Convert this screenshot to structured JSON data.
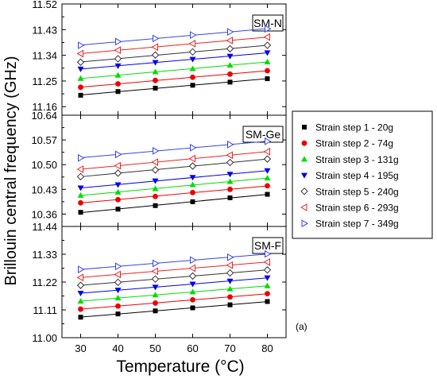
{
  "figure": {
    "ylabel": "Brillouin central frequency (GHz)",
    "xlabel": "Temperature (°C)",
    "panel_tag": "(a)"
  },
  "chart_data": [
    {
      "type": "scatter",
      "title": "SM-N",
      "x": [
        30,
        40,
        50,
        60,
        70,
        80
      ],
      "xlim": [
        25,
        85
      ],
      "ylim": [
        11.13,
        11.52
      ],
      "yticks": [
        "11.16",
        "11.25",
        "11.34",
        "11.43",
        "11.52"
      ],
      "series": [
        {
          "name": "Strain step 1 - 20g",
          "values": [
            11.2,
            11.213,
            11.225,
            11.235,
            11.246,
            11.258
          ]
        },
        {
          "name": "Strain step 2 - 74g",
          "values": [
            11.228,
            11.24,
            11.252,
            11.263,
            11.274,
            11.286
          ]
        },
        {
          "name": "Strain step 3 - 131g",
          "values": [
            11.259,
            11.27,
            11.282,
            11.293,
            11.305,
            11.317
          ]
        },
        {
          "name": "Strain step 4 - 195g",
          "values": [
            11.292,
            11.303,
            11.315,
            11.326,
            11.337,
            11.349
          ]
        },
        {
          "name": "Strain step 5 - 240g",
          "values": [
            11.316,
            11.328,
            11.341,
            11.352,
            11.363,
            11.375
          ]
        },
        {
          "name": "Strain step 6 - 293g",
          "values": [
            11.346,
            11.358,
            11.369,
            11.381,
            11.392,
            11.404
          ]
        },
        {
          "name": "Strain step 7 - 349g",
          "values": [
            11.375,
            11.388,
            11.399,
            11.411,
            11.422,
            11.433
          ]
        }
      ]
    },
    {
      "type": "scatter",
      "title": "SM-Ge",
      "x": [
        30,
        40,
        50,
        60,
        70,
        80
      ],
      "xlim": [
        25,
        85
      ],
      "ylim": [
        10.325,
        10.64
      ],
      "yticks": [
        "10.36",
        "10.43",
        "10.50",
        "10.57",
        "10.64"
      ],
      "series": [
        {
          "name": "Strain step 1 - 20g",
          "values": [
            10.365,
            10.374,
            10.384,
            10.395,
            10.406,
            10.416
          ]
        },
        {
          "name": "Strain step 2 - 74g",
          "values": [
            10.392,
            10.401,
            10.41,
            10.421,
            10.43,
            10.44
          ]
        },
        {
          "name": "Strain step 3 - 131g",
          "values": [
            10.413,
            10.422,
            10.432,
            10.443,
            10.452,
            10.462
          ]
        },
        {
          "name": "Strain step 4 - 195g",
          "values": [
            10.434,
            10.443,
            10.454,
            10.464,
            10.473,
            10.483
          ]
        },
        {
          "name": "Strain step 5 - 240g",
          "values": [
            10.466,
            10.476,
            10.485,
            10.496,
            10.506,
            10.516
          ]
        },
        {
          "name": "Strain step 6 - 293g",
          "values": [
            10.487,
            10.497,
            10.507,
            10.517,
            10.527,
            10.537
          ]
        },
        {
          "name": "Strain step 7 - 349g",
          "values": [
            10.519,
            10.529,
            10.539,
            10.548,
            10.557,
            10.566
          ]
        }
      ]
    },
    {
      "type": "scatter",
      "title": "SM-F",
      "x": [
        30,
        40,
        50,
        60,
        70,
        80
      ],
      "xlim": [
        25,
        85
      ],
      "ylim": [
        11.0,
        11.44
      ],
      "yticks": [
        "11.00",
        "11.11",
        "11.22",
        "11.33",
        "11.44"
      ],
      "series": [
        {
          "name": "Strain step 1 - 20g",
          "values": [
            11.081,
            11.094,
            11.106,
            11.118,
            11.13,
            11.143
          ]
        },
        {
          "name": "Strain step 2 - 74g",
          "values": [
            11.113,
            11.125,
            11.137,
            11.15,
            11.161,
            11.174
          ]
        },
        {
          "name": "Strain step 3 - 131g",
          "values": [
            11.144,
            11.157,
            11.169,
            11.181,
            11.193,
            11.205
          ]
        },
        {
          "name": "Strain step 4 - 195g",
          "values": [
            11.176,
            11.188,
            11.2,
            11.212,
            11.224,
            11.237
          ]
        },
        {
          "name": "Strain step 5 - 240g",
          "values": [
            11.207,
            11.219,
            11.232,
            11.244,
            11.256,
            11.268
          ]
        },
        {
          "name": "Strain step 6 - 293g",
          "values": [
            11.238,
            11.25,
            11.263,
            11.275,
            11.287,
            11.299
          ]
        },
        {
          "name": "Strain step 7 - 349g",
          "values": [
            11.27,
            11.282,
            11.294,
            11.307,
            11.318,
            11.331
          ]
        }
      ]
    }
  ],
  "legend": {
    "placement": "right",
    "items": [
      {
        "label": "Strain step 1 - 20g",
        "marker": "square-filled",
        "color": "#000000"
      },
      {
        "label": "Strain step 2 - 74g",
        "marker": "circle-filled",
        "color": "#ee0000"
      },
      {
        "label": "Strain step 3 - 131g",
        "marker": "triangle-up-filled",
        "color": "#00dd00"
      },
      {
        "label": "Strain step 4 - 195g",
        "marker": "triangle-down-filled",
        "color": "#0000ee"
      },
      {
        "label": "Strain step 5 - 240g",
        "marker": "diamond-open",
        "color": "#333333"
      },
      {
        "label": "Strain step 6 - 293g",
        "marker": "triangle-left-open",
        "color": "#ee2222"
      },
      {
        "label": "Strain step 7 - 349g",
        "marker": "triangle-right-open",
        "color": "#3344ee"
      }
    ]
  }
}
